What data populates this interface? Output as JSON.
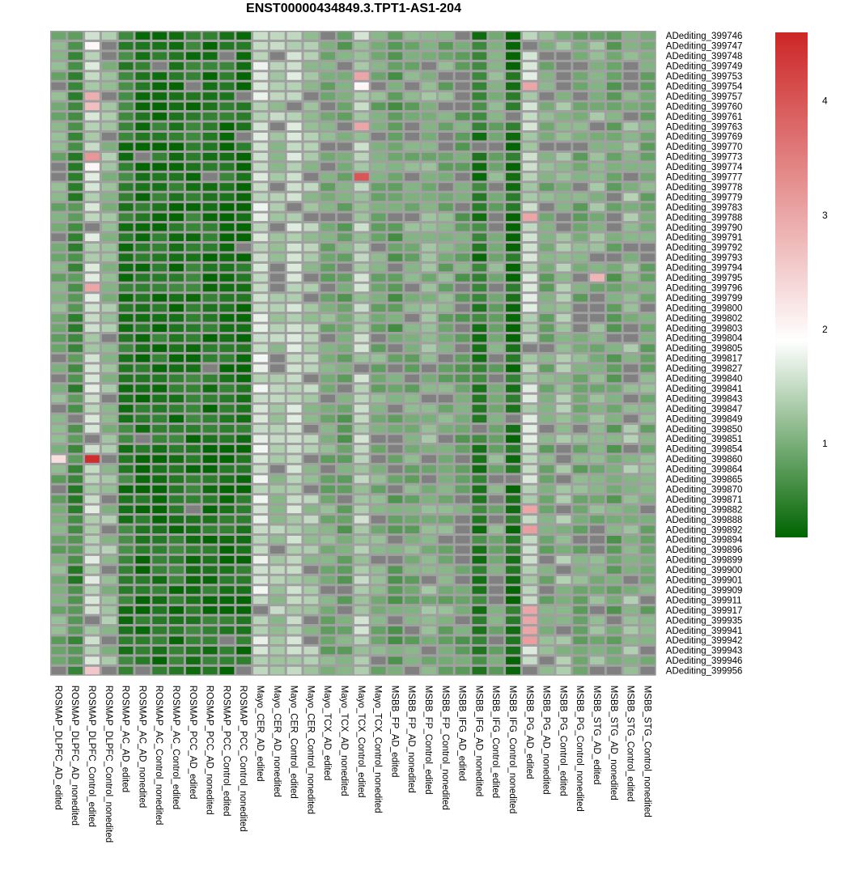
{
  "chart_data": {
    "type": "heatmap",
    "title": "ENST00000434849.3.TPT1-AS1-204",
    "na_color": "#808080",
    "border_color": "#a0a0a0",
    "color_scale": {
      "min": 0.18,
      "max": 4.6,
      "stops": [
        {
          "value": 0.18,
          "color": "#006400"
        },
        {
          "value": 1.9,
          "color": "#ffffff"
        },
        {
          "value": 4.6,
          "color": "#cd2626"
        }
      ],
      "ticks": [
        "1",
        "2",
        "3",
        "4"
      ],
      "tick_values": [
        1,
        2,
        3,
        4
      ]
    },
    "columns": [
      "ROSMAP_DLPFC_AD_edited",
      "ROSMAP_DLPFC_AD_nonedited",
      "ROSMAP_DLPFC_Control_edited",
      "ROSMAP_DLPFC_Control_nonedited",
      "ROSMAP_AC_AD_edited",
      "ROSMAP_AC_AD_nonedited",
      "ROSMAP_AC_Control_nonedited",
      "ROSMAP_AC_Control_edited",
      "ROSMAP_PCC_AD_edited",
      "ROSMAP_PCC_AD_nonedited",
      "ROSMAP_PCC_Control_edited",
      "ROSMAP_PCC_Control_nonedited",
      "Mayo_CER_AD_edited",
      "Mayo_CER_AD_nonedited",
      "Mayo_CER_Control_edited",
      "Mayo_CER_Control_nonedited",
      "Mayo_TCX_AD_edited",
      "Mayo_TCX_AD_nonedited",
      "Mayo_TCX_Control_edited",
      "Mayo_TCX_Control_nonedited",
      "MSBB_FP_AD_edited",
      "MSBB_FP_AD_nonedited",
      "MSBB_FP_Control_edited",
      "MSBB_FP_Control_nonedited",
      "MSBB_IFG_AD_edited",
      "MSBB_IFG_AD_nonedited",
      "MSBB_IFG_Control_edited",
      "MSBB_IFG_Control_nonedited",
      "MSBB_PG_AD_edited",
      "MSBB_PG_AD_nonedited",
      "MSBB_PG_Control_edited",
      "MSBB_PG_Control_nonedited",
      "MSBB_STG_AD_edited",
      "MSBB_STG_AD_nonedited",
      "MSBB_STG_Control_edited",
      "MSBB_STG_Control_nonedited"
    ],
    "rows": [
      "ADediting_399746",
      "ADediting_399747",
      "ADediting_399748",
      "ADediting_399749",
      "ADediting_399753",
      "ADediting_399754",
      "ADediting_399757",
      "ADediting_399760",
      "ADediting_399761",
      "ADediting_399763",
      "ADediting_399769",
      "ADediting_399770",
      "ADediting_399773",
      "ADediting_399774",
      "ADediting_399777",
      "ADediting_399778",
      "ADediting_399779",
      "ADediting_399783",
      "ADediting_399788",
      "ADediting_399790",
      "ADediting_399791",
      "ADediting_399792",
      "ADediting_399793",
      "ADediting_399794",
      "ADediting_399795",
      "ADediting_399796",
      "ADediting_399799",
      "ADediting_399800",
      "ADediting_399802",
      "ADediting_399803",
      "ADediting_399804",
      "ADediting_399805",
      "ADediting_399817",
      "ADediting_399827",
      "ADediting_399840",
      "ADediting_399841",
      "ADediting_399843",
      "ADediting_399847",
      "ADediting_399849",
      "ADediting_399850",
      "ADediting_399851",
      "ADediting_399854",
      "ADediting_399860",
      "ADediting_399864",
      "ADediting_399865",
      "ADediting_399870",
      "ADediting_399871",
      "ADediting_399882",
      "ADediting_399888",
      "ADediting_399892",
      "ADediting_399894",
      "ADediting_399896",
      "ADediting_399899",
      "ADediting_399900",
      "ADediting_399901",
      "ADediting_399909",
      "ADediting_399911",
      "ADediting_399917",
      "ADediting_399935",
      "ADediting_399941",
      "ADediting_399942",
      "ADediting_399943",
      "ADediting_399946",
      "ADediting_399956"
    ],
    "column_profiles": [
      1.0,
      0.6,
      1.5,
      1.2,
      0.45,
      0.3,
      0.35,
      0.4,
      0.4,
      0.35,
      0.35,
      0.3,
      1.6,
      1.3,
      1.5,
      1.3,
      1.0,
      0.9,
      1.4,
      1.0,
      0.85,
      1.0,
      1.1,
      1.0,
      0.9,
      0.45,
      1.0,
      0.3,
      1.5,
      1.0,
      1.2,
      1.0,
      1.1,
      0.9,
      1.2,
      1.0
    ],
    "highlights": [
      {
        "row": "ADediting_399747",
        "column": "ROSMAP_DLPFC_Control_edited",
        "value": 2.0
      },
      {
        "row": "ADediting_399753",
        "column": "Mayo_TCX_Control_edited",
        "value": 3.0
      },
      {
        "row": "ADediting_399754",
        "column": "Mayo_TCX_Control_edited",
        "value": 2.0
      },
      {
        "row": "ADediting_399754",
        "column": "MSBB_PG_AD_edited",
        "value": 3.0
      },
      {
        "row": "ADediting_399757",
        "column": "ROSMAP_DLPFC_Control_edited",
        "value": 2.9
      },
      {
        "row": "ADediting_399760",
        "column": "ROSMAP_DLPFC_Control_edited",
        "value": 2.7
      },
      {
        "row": "ADediting_399763",
        "column": "Mayo_TCX_Control_edited",
        "value": 3.0
      },
      {
        "row": "ADediting_399773",
        "column": "ROSMAP_DLPFC_Control_edited",
        "value": 3.2
      },
      {
        "row": "ADediting_399774",
        "column": "ROSMAP_DLPFC_Control_edited",
        "value": 2.0
      },
      {
        "row": "ADediting_399777",
        "column": "Mayo_TCX_Control_edited",
        "value": 4.0
      },
      {
        "row": "ADediting_399788",
        "column": "MSBB_PG_AD_edited",
        "value": 3.0
      },
      {
        "row": "ADediting_399795",
        "column": "MSBB_STG_AD_edited",
        "value": 2.8
      },
      {
        "row": "ADediting_399796",
        "column": "ROSMAP_DLPFC_Control_edited",
        "value": 3.0
      },
      {
        "row": "ADediting_399860",
        "column": "ROSMAP_DLPFC_AD_edited",
        "value": 2.3
      },
      {
        "row": "ADediting_399860",
        "column": "ROSMAP_DLPFC_Control_edited",
        "value": 4.5
      },
      {
        "row": "ADediting_399882",
        "column": "MSBB_PG_AD_edited",
        "value": 3.0
      },
      {
        "row": "ADediting_399892",
        "column": "MSBB_PG_AD_edited",
        "value": 3.1
      },
      {
        "row": "ADediting_399917",
        "column": "MSBB_PG_AD_edited",
        "value": 3.0
      },
      {
        "row": "ADediting_399935",
        "column": "MSBB_PG_AD_edited",
        "value": 3.0
      },
      {
        "row": "ADediting_399941",
        "column": "MSBB_PG_AD_edited",
        "value": 3.0
      },
      {
        "row": "ADediting_399942",
        "column": "MSBB_PG_AD_edited",
        "value": 3.1
      },
      {
        "row": "ADediting_399956",
        "column": "ROSMAP_DLPFC_Control_edited",
        "value": 2.6
      }
    ],
    "legend_position": "right"
  }
}
